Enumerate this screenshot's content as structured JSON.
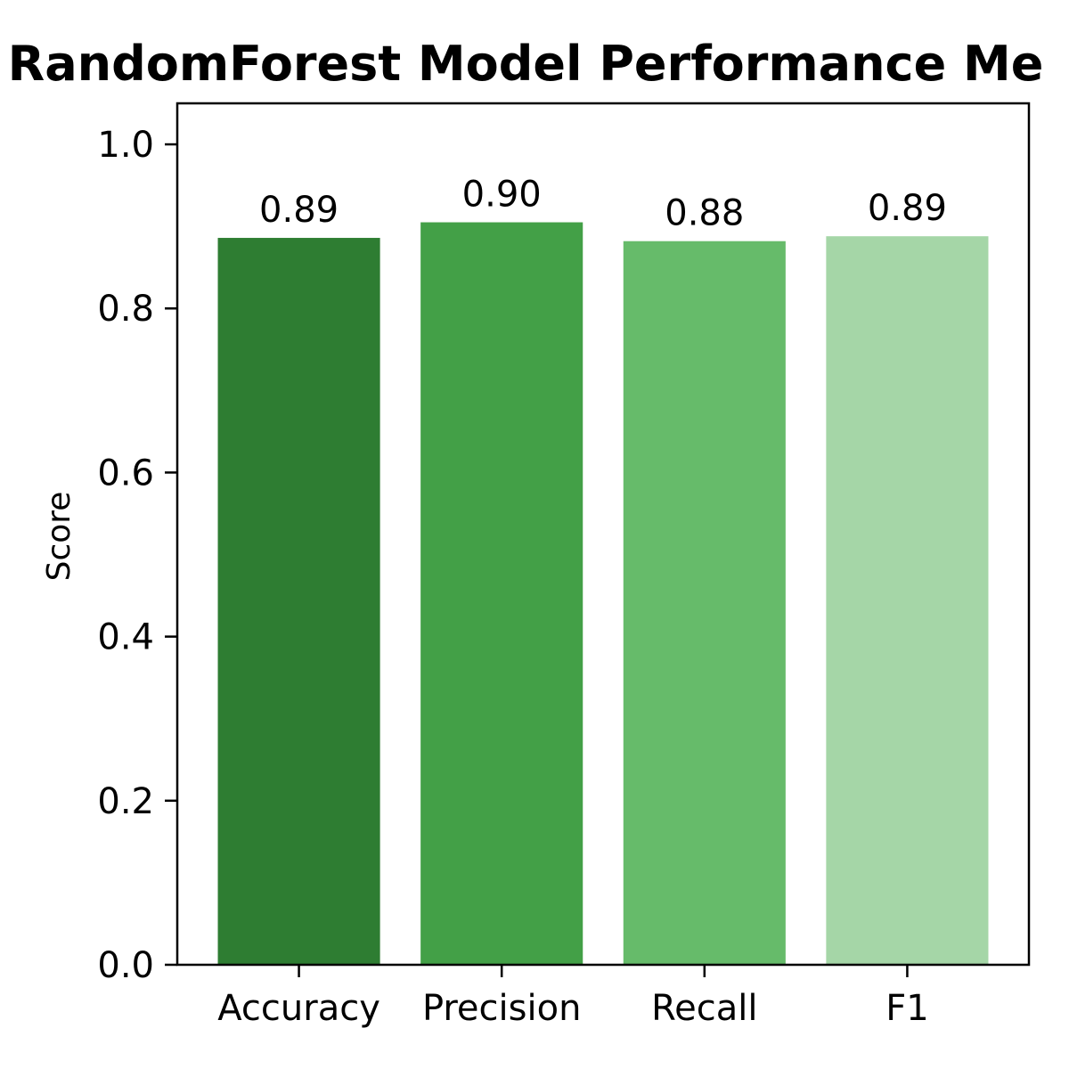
{
  "chart_data": {
    "type": "bar",
    "title": "RandomForest Model Performance Me",
    "xlabel": "",
    "ylabel": "Score",
    "categories": [
      "Accuracy",
      "Precision",
      "Recall",
      "F1"
    ],
    "values": [
      0.886,
      0.905,
      0.882,
      0.888
    ],
    "data_labels": [
      "0.89",
      "0.90",
      "0.88",
      "0.89"
    ],
    "colors": [
      "#2e7d32",
      "#43a047",
      "#66bb6a",
      "#a5d6a7"
    ],
    "ylim": [
      0,
      1.05
    ],
    "yticks": [
      0.0,
      0.2,
      0.4,
      0.6,
      0.8,
      1.0
    ],
    "ytick_labels": [
      "0.0",
      "0.2",
      "0.4",
      "0.6",
      "0.8",
      "1.0"
    ],
    "grid": false,
    "legend": "none"
  }
}
